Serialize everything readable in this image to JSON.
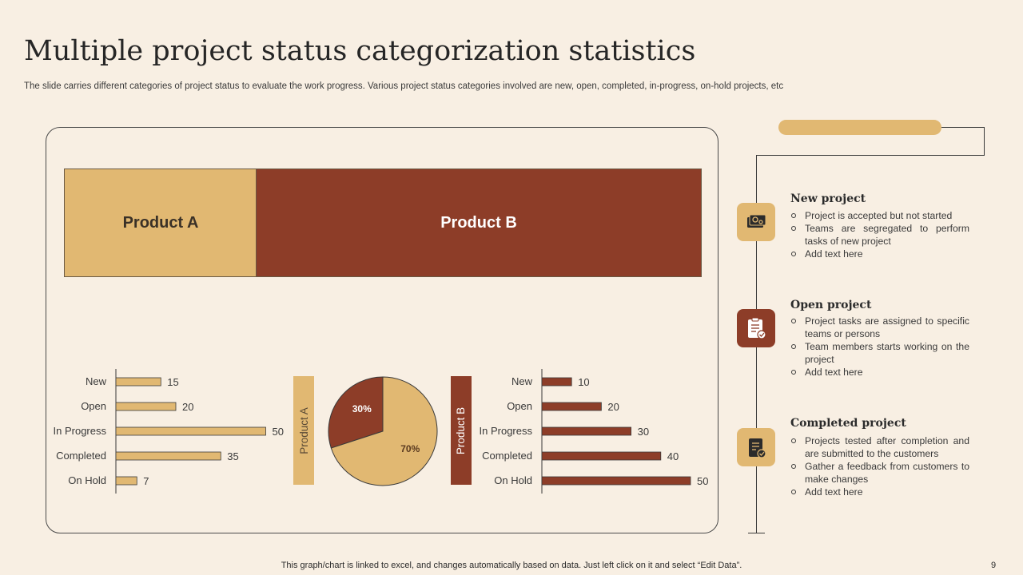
{
  "header": {
    "title": "Multiple project status categorization statistics",
    "subtitle": "The slide carries different categories of project status to evaluate the work progress. Various project status categories involved are new, open, completed, in-progress, on-hold projects, etc"
  },
  "banner": {
    "product_a": "Product A",
    "product_b": "Product B"
  },
  "vertical_labels": {
    "product_a": "Product A",
    "product_b": "Product B"
  },
  "colors": {
    "tan": "#e1b872",
    "rust": "#8d3d28",
    "background": "#f8efe3"
  },
  "chart_data": [
    {
      "type": "bar",
      "orientation": "horizontal",
      "categories": [
        "New",
        "Open",
        "In Progress",
        "Completed",
        "On Hold"
      ],
      "values": [
        15,
        20,
        50,
        35,
        7
      ],
      "color": "#e1b872"
    },
    {
      "type": "pie",
      "labels": [
        "30%",
        "70%"
      ],
      "values": [
        30,
        70
      ],
      "colors": [
        "#8d3d28",
        "#e1b872"
      ]
    },
    {
      "type": "bar",
      "orientation": "horizontal",
      "categories": [
        "New",
        "Open",
        "In Progress",
        "Completed",
        "On Hold"
      ],
      "values": [
        10,
        20,
        30,
        40,
        50
      ],
      "color": "#8d3d28"
    }
  ],
  "sections": [
    {
      "heading": "New project",
      "icon": "money-icon",
      "bullets": [
        "Project is accepted but not started",
        "Teams are segregated to perform tasks of new project",
        "Add text here"
      ]
    },
    {
      "heading": "Open project",
      "icon": "clipboard-check-icon",
      "bullets": [
        "Project tasks are assigned to specific teams or persons",
        "Team members starts working on the project",
        "Add text here"
      ]
    },
    {
      "heading": "Completed project",
      "icon": "checklist-icon",
      "bullets": [
        "Projects tested after completion and are submitted to the customers",
        "Gather a feedback from customers to make changes",
        "Add text here"
      ]
    }
  ],
  "footer": {
    "note": "This graph/chart is linked to excel,  and changes automatically based on data. Just left click on it and select “Edit Data”.",
    "page_number": "9"
  }
}
